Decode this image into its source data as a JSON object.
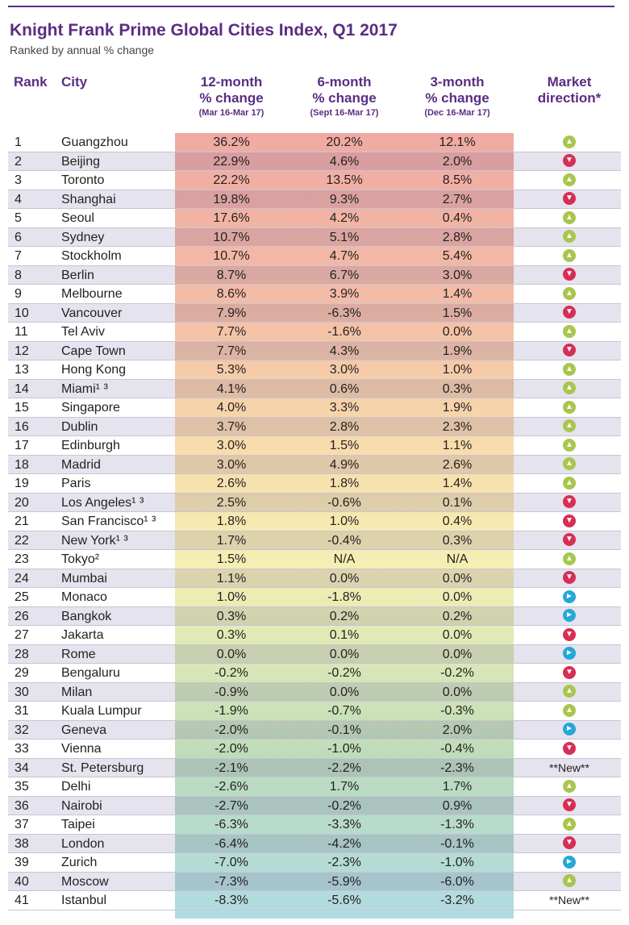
{
  "title": "Knight Frank Prime Global Cities Index, Q1 2017",
  "subtitle": "Ranked by annual % change",
  "headers": {
    "rank": "Rank",
    "city": "City",
    "col1": "12-month\n% change",
    "col1_sub": "(Mar 16-Mar 17)",
    "col2": "6-month\n% change",
    "col2_sub": "(Sept 16-Mar 17)",
    "col3": "3-month\n% change",
    "col3_sub": "(Dec 16-Mar 17)",
    "direction": "Market\ndirection*"
  },
  "colors": {
    "accent": "#5a2d81",
    "up": "#a8c64d",
    "down": "#d82d55",
    "flat": "#25a7d9"
  },
  "chart_data": {
    "type": "table",
    "title": "Knight Frank Prime Global Cities Index, Q1 2017",
    "subtitle": "Ranked by annual % change",
    "columns": [
      "Rank",
      "City",
      "12-month % change (Mar 16-Mar 17)",
      "6-month % change (Sept 16-Mar 17)",
      "3-month % change (Dec 16-Mar 17)",
      "Market direction*"
    ],
    "rows": [
      {
        "rank": "1",
        "city": "Guangzhou",
        "m12": "36.2%",
        "m6": "20.2%",
        "m3": "12.1%",
        "direction": "up"
      },
      {
        "rank": "2",
        "city": "Beijing",
        "m12": "22.9%",
        "m6": "4.6%",
        "m3": "2.0%",
        "direction": "down"
      },
      {
        "rank": "3",
        "city": "Toronto",
        "m12": "22.2%",
        "m6": "13.5%",
        "m3": "8.5%",
        "direction": "up"
      },
      {
        "rank": "4",
        "city": "Shanghai",
        "m12": "19.8%",
        "m6": "9.3%",
        "m3": "2.7%",
        "direction": "down"
      },
      {
        "rank": "5",
        "city": "Seoul",
        "m12": "17.6%",
        "m6": "4.2%",
        "m3": "0.4%",
        "direction": "up"
      },
      {
        "rank": "6",
        "city": "Sydney",
        "m12": "10.7%",
        "m6": "5.1%",
        "m3": "2.8%",
        "direction": "up"
      },
      {
        "rank": "7",
        "city": "Stockholm",
        "m12": "10.7%",
        "m6": "4.7%",
        "m3": "5.4%",
        "direction": "up"
      },
      {
        "rank": "8",
        "city": "Berlin",
        "m12": "8.7%",
        "m6": "6.7%",
        "m3": "3.0%",
        "direction": "down"
      },
      {
        "rank": "9",
        "city": "Melbourne",
        "m12": "8.6%",
        "m6": "3.9%",
        "m3": "1.4%",
        "direction": "up"
      },
      {
        "rank": "10",
        "city": "Vancouver",
        "m12": "7.9%",
        "m6": "-6.3%",
        "m3": "1.5%",
        "direction": "down"
      },
      {
        "rank": "11",
        "city": "Tel Aviv",
        "m12": "7.7%",
        "m6": "-1.6%",
        "m3": "0.0%",
        "direction": "up"
      },
      {
        "rank": "12",
        "city": "Cape Town",
        "m12": "7.7%",
        "m6": "4.3%",
        "m3": "1.9%",
        "direction": "down"
      },
      {
        "rank": "13",
        "city": "Hong Kong",
        "m12": "5.3%",
        "m6": "3.0%",
        "m3": "1.0%",
        "direction": "up"
      },
      {
        "rank": "14",
        "city": "Miami¹ ³",
        "m12": "4.1%",
        "m6": "0.6%",
        "m3": "0.3%",
        "direction": "up"
      },
      {
        "rank": "15",
        "city": "Singapore",
        "m12": "4.0%",
        "m6": "3.3%",
        "m3": "1.9%",
        "direction": "up"
      },
      {
        "rank": "16",
        "city": "Dublin",
        "m12": "3.7%",
        "m6": "2.8%",
        "m3": "2.3%",
        "direction": "up"
      },
      {
        "rank": "17",
        "city": "Edinburgh",
        "m12": "3.0%",
        "m6": "1.5%",
        "m3": "1.1%",
        "direction": "up"
      },
      {
        "rank": "18",
        "city": "Madrid",
        "m12": "3.0%",
        "m6": "4.9%",
        "m3": "2.6%",
        "direction": "up"
      },
      {
        "rank": "19",
        "city": "Paris",
        "m12": "2.6%",
        "m6": "1.8%",
        "m3": "1.4%",
        "direction": "up"
      },
      {
        "rank": "20",
        "city": "Los Angeles¹ ³",
        "m12": "2.5%",
        "m6": "-0.6%",
        "m3": "0.1%",
        "direction": "down"
      },
      {
        "rank": "21",
        "city": "San Francisco¹ ³",
        "m12": "1.8%",
        "m6": "1.0%",
        "m3": "0.4%",
        "direction": "down"
      },
      {
        "rank": "22",
        "city": "New York¹ ³",
        "m12": "1.7%",
        "m6": "-0.4%",
        "m3": "0.3%",
        "direction": "down"
      },
      {
        "rank": "23",
        "city": "Tokyo²",
        "m12": "1.5%",
        "m6": "N/A",
        "m3": "N/A",
        "direction": "up"
      },
      {
        "rank": "24",
        "city": "Mumbai",
        "m12": "1.1%",
        "m6": "0.0%",
        "m3": "0.0%",
        "direction": "down"
      },
      {
        "rank": "25",
        "city": "Monaco",
        "m12": "1.0%",
        "m6": "-1.8%",
        "m3": "0.0%",
        "direction": "flat"
      },
      {
        "rank": "26",
        "city": "Bangkok",
        "m12": "0.3%",
        "m6": "0.2%",
        "m3": "0.2%",
        "direction": "flat"
      },
      {
        "rank": "27",
        "city": "Jakarta",
        "m12": "0.3%",
        "m6": "0.1%",
        "m3": "0.0%",
        "direction": "down"
      },
      {
        "rank": "28",
        "city": "Rome",
        "m12": "0.0%",
        "m6": "0.0%",
        "m3": "0.0%",
        "direction": "flat"
      },
      {
        "rank": "29",
        "city": "Bengaluru",
        "m12": "-0.2%",
        "m6": "-0.2%",
        "m3": "-0.2%",
        "direction": "down"
      },
      {
        "rank": "30",
        "city": "Milan",
        "m12": "-0.9%",
        "m6": "0.0%",
        "m3": "0.0%",
        "direction": "up"
      },
      {
        "rank": "31",
        "city": "Kuala Lumpur",
        "m12": "-1.9%",
        "m6": "-0.7%",
        "m3": "-0.3%",
        "direction": "up"
      },
      {
        "rank": "32",
        "city": "Geneva",
        "m12": "-2.0%",
        "m6": "-0.1%",
        "m3": "2.0%",
        "direction": "flat"
      },
      {
        "rank": "33",
        "city": "Vienna",
        "m12": "-2.0%",
        "m6": "-1.0%",
        "m3": "-0.4%",
        "direction": "down"
      },
      {
        "rank": "34",
        "city": "St. Petersburg",
        "m12": "-2.1%",
        "m6": "-2.2%",
        "m3": "-2.3%",
        "direction": "new"
      },
      {
        "rank": "35",
        "city": "Delhi",
        "m12": "-2.6%",
        "m6": "1.7%",
        "m3": "1.7%",
        "direction": "up"
      },
      {
        "rank": "36",
        "city": "Nairobi",
        "m12": "-2.7%",
        "m6": "-0.2%",
        "m3": "0.9%",
        "direction": "down"
      },
      {
        "rank": "37",
        "city": "Taipei",
        "m12": "-6.3%",
        "m6": "-3.3%",
        "m3": "-1.3%",
        "direction": "up"
      },
      {
        "rank": "38",
        "city": "London",
        "m12": "-6.4%",
        "m6": "-4.2%",
        "m3": "-0.1%",
        "direction": "down"
      },
      {
        "rank": "39",
        "city": "Zurich",
        "m12": "-7.0%",
        "m6": "-2.3%",
        "m3": "-1.0%",
        "direction": "flat"
      },
      {
        "rank": "40",
        "city": "Moscow",
        "m12": "-7.3%",
        "m6": "-5.9%",
        "m3": "-6.0%",
        "direction": "up"
      },
      {
        "rank": "41",
        "city": "Istanbul",
        "m12": "-8.3%",
        "m6": "-5.6%",
        "m3": "-3.2%",
        "direction": "new"
      }
    ],
    "new_label": "**New**"
  }
}
